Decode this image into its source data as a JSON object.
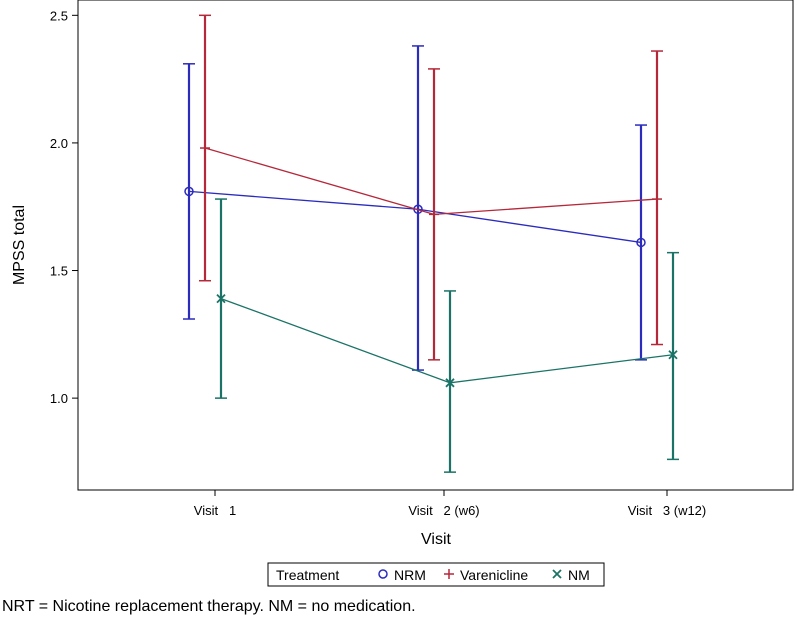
{
  "chart_data": {
    "type": "line",
    "xlabel": "Visit",
    "ylabel": "MPSS total",
    "ylim": [
      0.64,
      2.56
    ],
    "yticks": [
      1.0,
      1.5,
      2.0,
      2.5
    ],
    "ytick_labels": [
      "1.0",
      "1.5",
      "2.0",
      "2.5"
    ],
    "categories": [
      "Visit   1",
      "Visit   2 (w6)",
      "Visit   3 (w12)"
    ],
    "grid": false,
    "error_bars": true,
    "legend": {
      "title": "Treatment",
      "placement": "bottom"
    },
    "series": [
      {
        "name": "NRM",
        "marker": "circle",
        "color": "#2b2bbd",
        "values": [
          1.81,
          1.74,
          1.61
        ],
        "lower": [
          1.31,
          1.11,
          1.15
        ],
        "upper": [
          2.31,
          2.38,
          2.07
        ]
      },
      {
        "name": "Varenicline",
        "marker": "plus",
        "color": "#b5283a",
        "values": [
          1.98,
          1.72,
          1.78
        ],
        "lower": [
          1.46,
          1.15,
          1.21
        ],
        "upper": [
          2.5,
          2.29,
          2.36
        ]
      },
      {
        "name": "NM",
        "marker": "x",
        "color": "#1a7366",
        "values": [
          1.39,
          1.06,
          1.17
        ],
        "lower": [
          1.0,
          0.71,
          0.76
        ],
        "upper": [
          1.78,
          1.42,
          1.57
        ]
      }
    ]
  },
  "footnote": "NRT = Nicotine replacement therapy. NM = no medication."
}
